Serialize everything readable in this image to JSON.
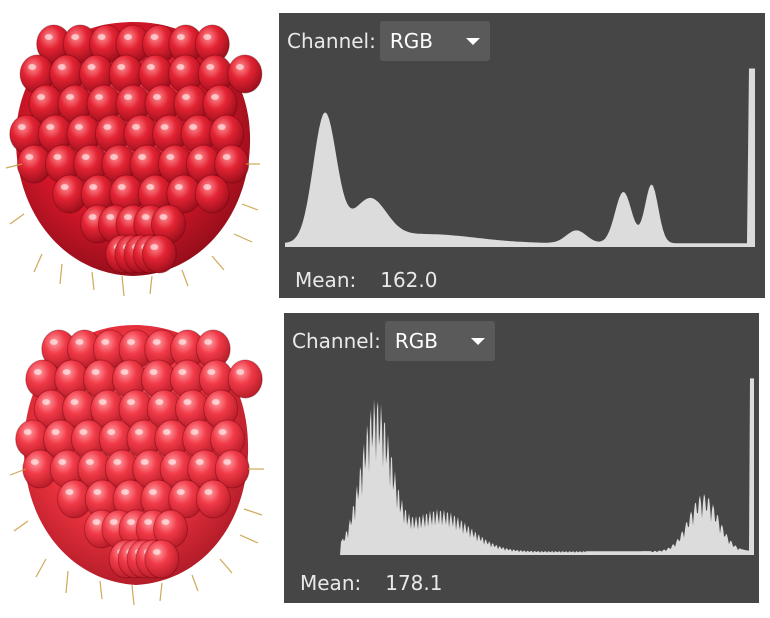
{
  "panels": [
    {
      "channel_label": "Channel:",
      "channel_value": "RGB",
      "mean_label": "Mean:",
      "mean_value": "162.0",
      "fruit_color": "#e0202c"
    },
    {
      "channel_label": "Channel:",
      "channel_value": "RGB",
      "mean_label": "Mean:",
      "mean_value": "178.1",
      "fruit_color": "#f2404a"
    }
  ],
  "colors": {
    "panel_bg": "#464646",
    "dropdown_bg": "#5a5a5a",
    "histogram_fill": "#dcdcdc",
    "text": "#e9e9e9"
  },
  "icons": [
    "raspberry-image",
    "chevron-down-icon"
  ]
}
